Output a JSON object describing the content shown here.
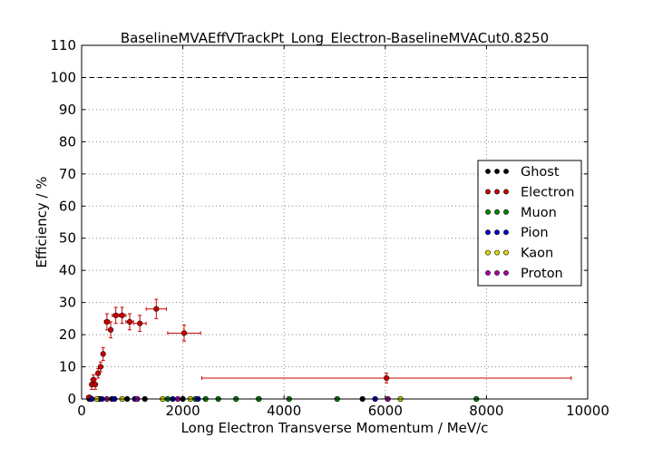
{
  "chart_data": {
    "type": "scatter",
    "title": "BaselineMVAEffVTrackPt_Long_Electron-BaselineMVACut0.8250",
    "xlabel": "Long Electron Transverse Momentum / MeV/c",
    "ylabel": "Efficiency / %",
    "xlim": [
      0,
      10000
    ],
    "ylim": [
      0,
      110
    ],
    "x_ticks": [
      "0",
      "2000",
      "4000",
      "6000",
      "8000",
      "10000"
    ],
    "y_ticks": [
      "0",
      "10",
      "20",
      "30",
      "40",
      "50",
      "60",
      "70",
      "80",
      "90",
      "100",
      "110"
    ],
    "grid": true,
    "reference_line": 100,
    "legend_position": "center-right",
    "series": [
      {
        "name": "Ghost",
        "color": "#000000",
        "points": [
          {
            "x": 150,
            "y": 0
          },
          {
            "x": 350,
            "y": 0
          },
          {
            "x": 600,
            "y": 0
          },
          {
            "x": 900,
            "y": 0
          },
          {
            "x": 1250,
            "y": 0
          },
          {
            "x": 2000,
            "y": 0
          },
          {
            "x": 3500,
            "y": 0
          },
          {
            "x": 5550,
            "y": 0
          }
        ]
      },
      {
        "name": "Electron",
        "color": "#cc0000",
        "points": [
          {
            "x": 150,
            "y": 0.5,
            "xerr": 50,
            "yerr": 0.5
          },
          {
            "x": 200,
            "y": 4.5,
            "xerr": 25,
            "yerr": 1.5
          },
          {
            "x": 235,
            "y": 6,
            "xerr": 25,
            "yerr": 1.5
          },
          {
            "x": 270,
            "y": 4.5,
            "xerr": 25,
            "yerr": 1.5
          },
          {
            "x": 325,
            "y": 8,
            "xerr": 25,
            "yerr": 1.5
          },
          {
            "x": 375,
            "y": 10,
            "xerr": 25,
            "yerr": 1.5
          },
          {
            "x": 425,
            "y": 14,
            "xerr": 25,
            "yerr": 2
          },
          {
            "x": 500,
            "y": 24,
            "xerr": 50,
            "yerr": 2.5
          },
          {
            "x": 575,
            "y": 21.5,
            "xerr": 30,
            "yerr": 2.5
          },
          {
            "x": 675,
            "y": 26,
            "xerr": 70,
            "yerr": 2.5
          },
          {
            "x": 800,
            "y": 26,
            "xerr": 75,
            "yerr": 2.5
          },
          {
            "x": 950,
            "y": 24,
            "xerr": 75,
            "yerr": 2.5
          },
          {
            "x": 1150,
            "y": 23.5,
            "xerr": 125,
            "yerr": 2.5
          },
          {
            "x": 1475,
            "y": 28,
            "xerr": 200,
            "yerr": 3
          },
          {
            "x": 2025,
            "y": 20.5,
            "xerr": 325,
            "yerr": 2.5
          },
          {
            "x": 6025,
            "y": 6.5,
            "xerr": 3650,
            "yerr": 1.5
          }
        ]
      },
      {
        "name": "Muon",
        "color": "#008800",
        "points": [
          {
            "x": 1700,
            "y": 0
          },
          {
            "x": 2250,
            "y": 0
          },
          {
            "x": 2450,
            "y": 0
          },
          {
            "x": 2700,
            "y": 0
          },
          {
            "x": 3050,
            "y": 0
          },
          {
            "x": 3500,
            "y": 0
          },
          {
            "x": 4100,
            "y": 0
          },
          {
            "x": 5050,
            "y": 0
          },
          {
            "x": 7800,
            "y": 0
          }
        ]
      },
      {
        "name": "Pion",
        "color": "#0000cc",
        "points": [
          {
            "x": 200,
            "y": 0
          },
          {
            "x": 400,
            "y": 0
          },
          {
            "x": 650,
            "y": 0
          },
          {
            "x": 1050,
            "y": 0
          },
          {
            "x": 1800,
            "y": 0
          },
          {
            "x": 2300,
            "y": 0
          },
          {
            "x": 5800,
            "y": 0
          }
        ]
      },
      {
        "name": "Kaon",
        "color": "#dddd00",
        "points": [
          {
            "x": 300,
            "y": 0
          },
          {
            "x": 800,
            "y": 0
          },
          {
            "x": 1600,
            "y": 0
          },
          {
            "x": 2150,
            "y": 0
          },
          {
            "x": 6300,
            "y": 0
          }
        ]
      },
      {
        "name": "Proton",
        "color": "#aa00aa",
        "points": [
          {
            "x": 500,
            "y": 0
          },
          {
            "x": 1100,
            "y": 0
          },
          {
            "x": 1900,
            "y": 0
          },
          {
            "x": 6050,
            "y": 0
          }
        ]
      }
    ]
  }
}
